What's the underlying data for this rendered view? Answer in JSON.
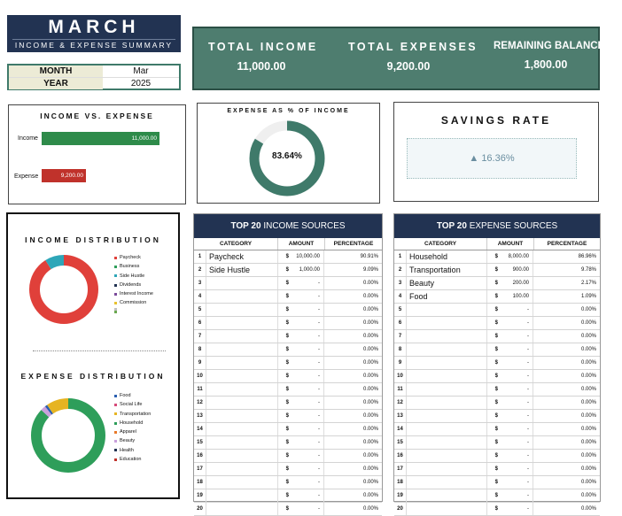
{
  "header": {
    "month_title": "MARCH",
    "subtitle": "INCOME & EXPENSE SUMMARY",
    "month_label": "MONTH",
    "month_value": "Mar",
    "year_label": "YEAR",
    "year_value": "2025"
  },
  "summary": {
    "total_income_label": "TOTAL INCOME",
    "total_income_value": "11,000.00",
    "total_expenses_label": "TOTAL EXPENSES",
    "total_expenses_value": "9,200.00",
    "remaining_label": "REMAINING BALANCE",
    "remaining_value": "1,800.00"
  },
  "income_vs_expense": {
    "title": "INCOME VS. EXPENSE",
    "income_label": "Income",
    "income_value_text": "11,000.00",
    "expense_label": "Expense",
    "expense_value_text": "9,200.00",
    "income_value": 11000,
    "expense_value": 9200,
    "income_color": "#2e8b4a",
    "expense_color": "#c0322b"
  },
  "expense_pct": {
    "title": "EXPENSE AS % OF INCOME",
    "value_text": "83.64%",
    "fraction": 0.8364,
    "color": "#3f7a6a",
    "track_color": "#efefef"
  },
  "savings": {
    "title": "SAVINGS RATE",
    "arrow": "▲",
    "value": "16.36%"
  },
  "income_distribution": {
    "title": "INCOME DISTRIBUTION",
    "legend": [
      {
        "label": "Paycheck",
        "color": "#e0403a"
      },
      {
        "label": "Business",
        "color": "#2e9e5a"
      },
      {
        "label": "Side Hustle",
        "color": "#2ea6b8"
      },
      {
        "label": "Dividends",
        "color": "#223352"
      },
      {
        "label": "Interest Income",
        "color": "#7a4a9a"
      },
      {
        "label": "Commission",
        "color": "#e8c22e"
      },
      {
        "label": "",
        "color": "#c0c0c0"
      },
      {
        "label": "",
        "color": "#6aa84f"
      }
    ],
    "slices": [
      {
        "name": "Paycheck",
        "value": 10000,
        "color": "#e0403a"
      },
      {
        "name": "Side Hustle",
        "value": 1000,
        "color": "#2ea6b8"
      }
    ]
  },
  "expense_distribution": {
    "title": "EXPENSE DISTRIBUTION",
    "legend": [
      {
        "label": "Food",
        "color": "#2a5fb0"
      },
      {
        "label": "Social Life",
        "color": "#d64a7a"
      },
      {
        "label": "Transportation",
        "color": "#e6b422"
      },
      {
        "label": "Household",
        "color": "#2e9e5a"
      },
      {
        "label": "Apparel",
        "color": "#e87a2a"
      },
      {
        "label": "Beauty",
        "color": "#c9a0dc"
      },
      {
        "label": "Health",
        "color": "#223352"
      },
      {
        "label": "Education",
        "color": "#c0322b"
      }
    ],
    "slices": [
      {
        "name": "Household",
        "value": 8000,
        "color": "#2e9e5a"
      },
      {
        "name": "Beauty",
        "value": 200,
        "color": "#c9a0dc"
      },
      {
        "name": "Food",
        "value": 100,
        "color": "#2a5fb0"
      },
      {
        "name": "Transportation",
        "value": 900,
        "color": "#e6b422"
      }
    ]
  },
  "income_table": {
    "title_bold": "TOP 20",
    "title_rest": " INCOME SOURCES",
    "columns": [
      "CATEGORY",
      "AMOUNT",
      "PERCENTAGE"
    ],
    "rows": [
      {
        "n": "1",
        "cat": "Paycheck",
        "cur": "$",
        "amt": "10,000.00",
        "pct": "90.91%"
      },
      {
        "n": "2",
        "cat": "Side Hustle",
        "cur": "$",
        "amt": "1,000.00",
        "pct": "9.09%"
      },
      {
        "n": "3",
        "cat": "",
        "cur": "$",
        "amt": "-",
        "pct": "0.00%"
      },
      {
        "n": "4",
        "cat": "",
        "cur": "$",
        "amt": "-",
        "pct": "0.00%"
      },
      {
        "n": "5",
        "cat": "",
        "cur": "$",
        "amt": "-",
        "pct": "0.00%"
      },
      {
        "n": "6",
        "cat": "",
        "cur": "$",
        "amt": "-",
        "pct": "0.00%"
      },
      {
        "n": "7",
        "cat": "",
        "cur": "$",
        "amt": "-",
        "pct": "0.00%"
      },
      {
        "n": "8",
        "cat": "",
        "cur": "$",
        "amt": "-",
        "pct": "0.00%"
      },
      {
        "n": "9",
        "cat": "",
        "cur": "$",
        "amt": "-",
        "pct": "0.00%"
      },
      {
        "n": "10",
        "cat": "",
        "cur": "$",
        "amt": "-",
        "pct": "0.00%"
      },
      {
        "n": "11",
        "cat": "",
        "cur": "$",
        "amt": "-",
        "pct": "0.00%"
      },
      {
        "n": "12",
        "cat": "",
        "cur": "$",
        "amt": "-",
        "pct": "0.00%"
      },
      {
        "n": "13",
        "cat": "",
        "cur": "$",
        "amt": "-",
        "pct": "0.00%"
      },
      {
        "n": "14",
        "cat": "",
        "cur": "$",
        "amt": "-",
        "pct": "0.00%"
      },
      {
        "n": "15",
        "cat": "",
        "cur": "$",
        "amt": "-",
        "pct": "0.00%"
      },
      {
        "n": "16",
        "cat": "",
        "cur": "$",
        "amt": "-",
        "pct": "0.00%"
      },
      {
        "n": "17",
        "cat": "",
        "cur": "$",
        "amt": "-",
        "pct": "0.00%"
      },
      {
        "n": "18",
        "cat": "",
        "cur": "$",
        "amt": "-",
        "pct": "0.00%"
      },
      {
        "n": "19",
        "cat": "",
        "cur": "$",
        "amt": "-",
        "pct": "0.00%"
      },
      {
        "n": "20",
        "cat": "",
        "cur": "$",
        "amt": "-",
        "pct": "0.00%"
      }
    ]
  },
  "expense_table": {
    "title_bold": "TOP 20",
    "title_rest": " EXPENSE SOURCES",
    "columns": [
      "CATEGORY",
      "AMOUNT",
      "PERCENTAGE"
    ],
    "rows": [
      {
        "n": "1",
        "cat": "Household",
        "cur": "$",
        "amt": "8,000.00",
        "pct": "86.96%"
      },
      {
        "n": "2",
        "cat": "Transportation",
        "cur": "$",
        "amt": "900.00",
        "pct": "9.78%"
      },
      {
        "n": "3",
        "cat": "Beauty",
        "cur": "$",
        "amt": "200.00",
        "pct": "2.17%"
      },
      {
        "n": "4",
        "cat": "Food",
        "cur": "$",
        "amt": "100.00",
        "pct": "1.09%"
      },
      {
        "n": "5",
        "cat": "",
        "cur": "$",
        "amt": "-",
        "pct": "0.00%"
      },
      {
        "n": "6",
        "cat": "",
        "cur": "$",
        "amt": "-",
        "pct": "0.00%"
      },
      {
        "n": "7",
        "cat": "",
        "cur": "$",
        "amt": "-",
        "pct": "0.00%"
      },
      {
        "n": "8",
        "cat": "",
        "cur": "$",
        "amt": "-",
        "pct": "0.00%"
      },
      {
        "n": "9",
        "cat": "",
        "cur": "$",
        "amt": "-",
        "pct": "0.00%"
      },
      {
        "n": "10",
        "cat": "",
        "cur": "$",
        "amt": "-",
        "pct": "0.00%"
      },
      {
        "n": "11",
        "cat": "",
        "cur": "$",
        "amt": "-",
        "pct": "0.00%"
      },
      {
        "n": "12",
        "cat": "",
        "cur": "$",
        "amt": "-",
        "pct": "0.00%"
      },
      {
        "n": "13",
        "cat": "",
        "cur": "$",
        "amt": "-",
        "pct": "0.00%"
      },
      {
        "n": "14",
        "cat": "",
        "cur": "$",
        "amt": "-",
        "pct": "0.00%"
      },
      {
        "n": "15",
        "cat": "",
        "cur": "$",
        "amt": "-",
        "pct": "0.00%"
      },
      {
        "n": "16",
        "cat": "",
        "cur": "$",
        "amt": "-",
        "pct": "0.00%"
      },
      {
        "n": "17",
        "cat": "",
        "cur": "$",
        "amt": "-",
        "pct": "0.00%"
      },
      {
        "n": "18",
        "cat": "",
        "cur": "$",
        "amt": "-",
        "pct": "0.00%"
      },
      {
        "n": "19",
        "cat": "",
        "cur": "$",
        "amt": "-",
        "pct": "0.00%"
      },
      {
        "n": "20",
        "cat": "",
        "cur": "$",
        "amt": "-",
        "pct": "0.00%"
      }
    ]
  }
}
